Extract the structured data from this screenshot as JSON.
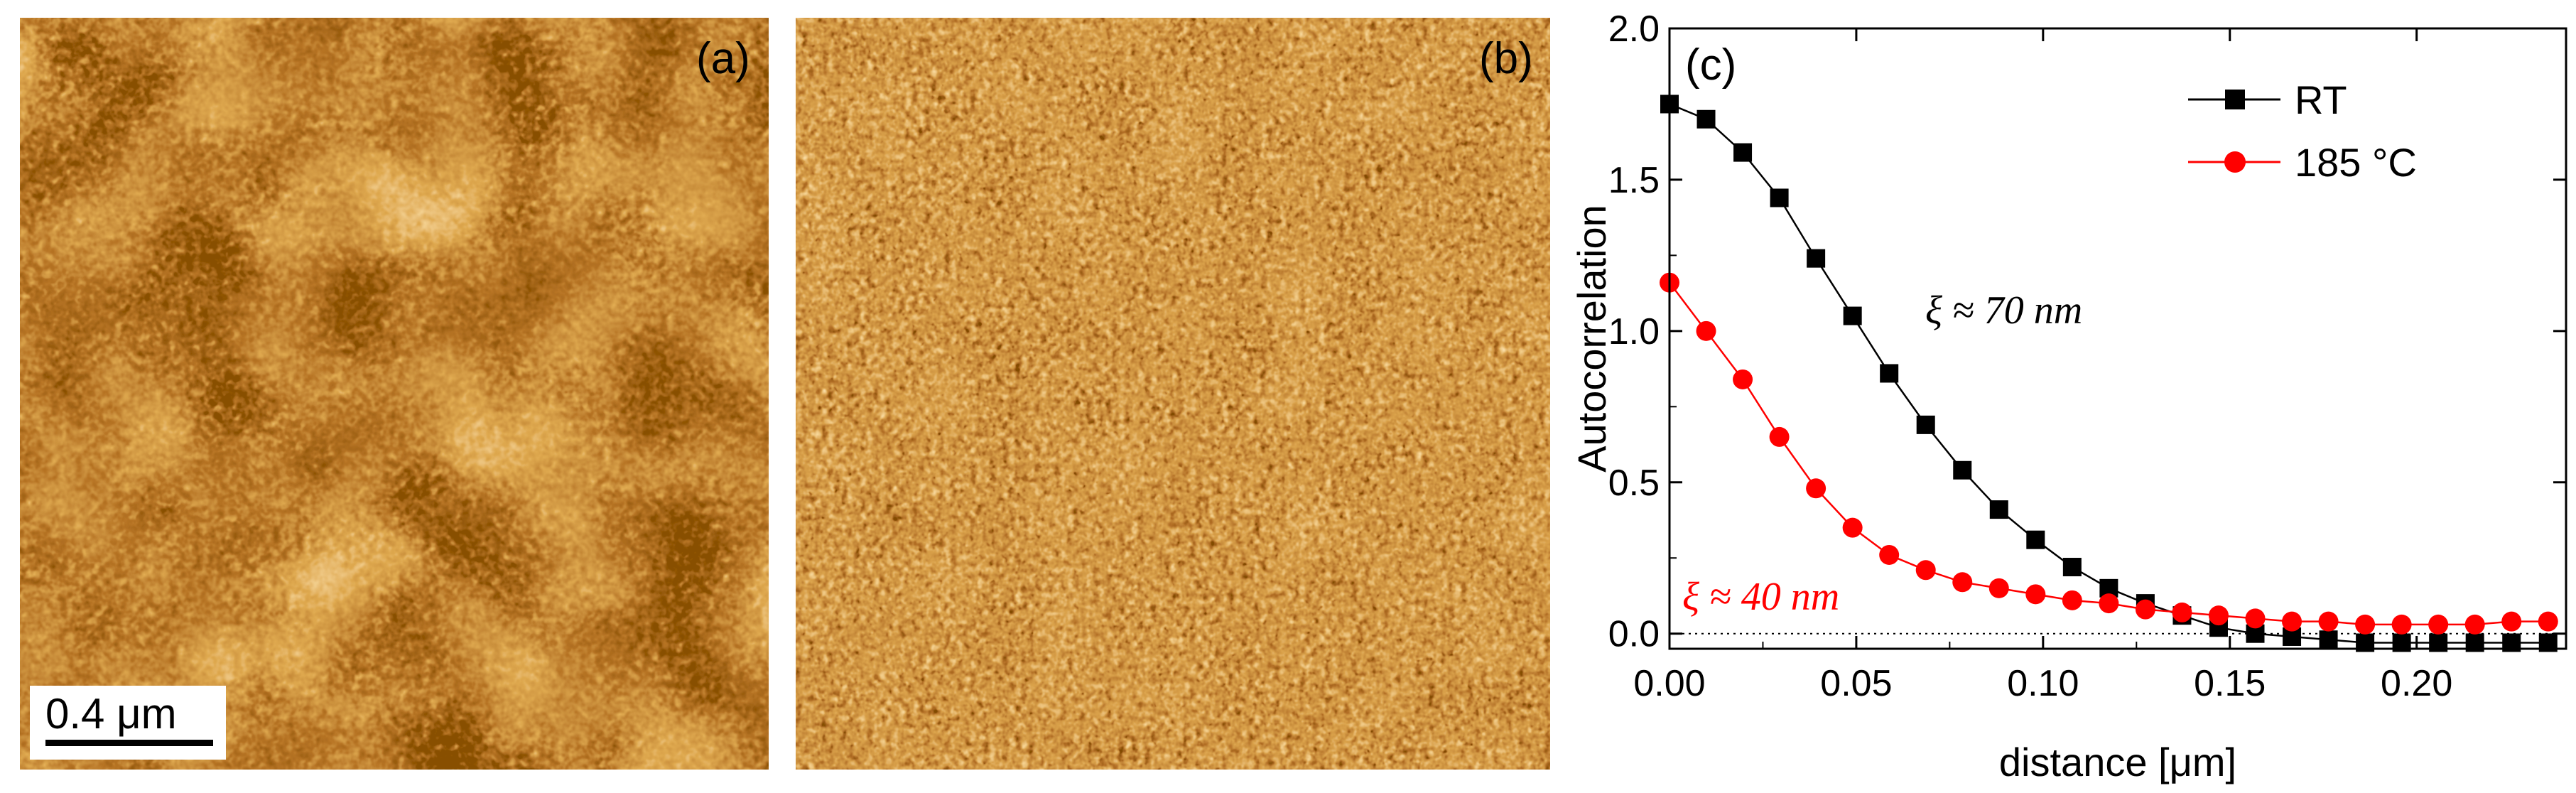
{
  "panels": {
    "a": {
      "label": "(a)",
      "scale_bar_label": "0.4 μm"
    },
    "b": {
      "label": "(b)"
    }
  },
  "chart_data": {
    "type": "line",
    "panel_label": "(c)",
    "xlabel": "distance [μm]",
    "ylabel": "Autocorrelation",
    "xlim": [
      0,
      0.24
    ],
    "ylim": [
      -0.05,
      2.0
    ],
    "xticks": [
      "0.00",
      "0.05",
      "0.10",
      "0.15",
      "0.20"
    ],
    "xtick_values": [
      0,
      0.05,
      0.1,
      0.15,
      0.2
    ],
    "yticks": [
      "0.0",
      "0.5",
      "1.0",
      "1.5",
      "2.0"
    ],
    "ytick_values": [
      0,
      0.5,
      1.0,
      1.5,
      2.0
    ],
    "legend_position": "top-right",
    "series": [
      {
        "name": "RT",
        "color": "#000000",
        "marker": "square",
        "x": [
          0,
          0.0098,
          0.0196,
          0.0294,
          0.0392,
          0.049,
          0.0588,
          0.0686,
          0.0784,
          0.0882,
          0.098,
          0.1078,
          0.1176,
          0.1274,
          0.1372,
          0.147,
          0.1568,
          0.1666,
          0.1764,
          0.1862,
          0.196,
          0.2058,
          0.2156,
          0.2254,
          0.2352
        ],
        "y": [
          1.75,
          1.7,
          1.59,
          1.44,
          1.24,
          1.05,
          0.86,
          0.69,
          0.54,
          0.41,
          0.31,
          0.22,
          0.15,
          0.1,
          0.06,
          0.02,
          0.0,
          -0.01,
          -0.02,
          -0.03,
          -0.03,
          -0.03,
          -0.03,
          -0.03,
          -0.03
        ]
      },
      {
        "name": "185 °C",
        "color": "#ff0000",
        "marker": "circle",
        "x": [
          0,
          0.0098,
          0.0196,
          0.0294,
          0.0392,
          0.049,
          0.0588,
          0.0686,
          0.0784,
          0.0882,
          0.098,
          0.1078,
          0.1176,
          0.1274,
          0.1372,
          0.147,
          0.1568,
          0.1666,
          0.1764,
          0.1862,
          0.196,
          0.2058,
          0.2156,
          0.2254,
          0.2352
        ],
        "y": [
          1.16,
          1.0,
          0.84,
          0.65,
          0.48,
          0.35,
          0.26,
          0.21,
          0.17,
          0.15,
          0.13,
          0.11,
          0.1,
          0.08,
          0.07,
          0.06,
          0.05,
          0.04,
          0.04,
          0.03,
          0.03,
          0.03,
          0.03,
          0.04,
          0.04
        ]
      }
    ],
    "annotations": [
      {
        "text": "ξ ≈ 70 nm",
        "color": "#000000"
      },
      {
        "text": "ξ ≈ 40 nm",
        "color": "#ff0000"
      }
    ]
  }
}
